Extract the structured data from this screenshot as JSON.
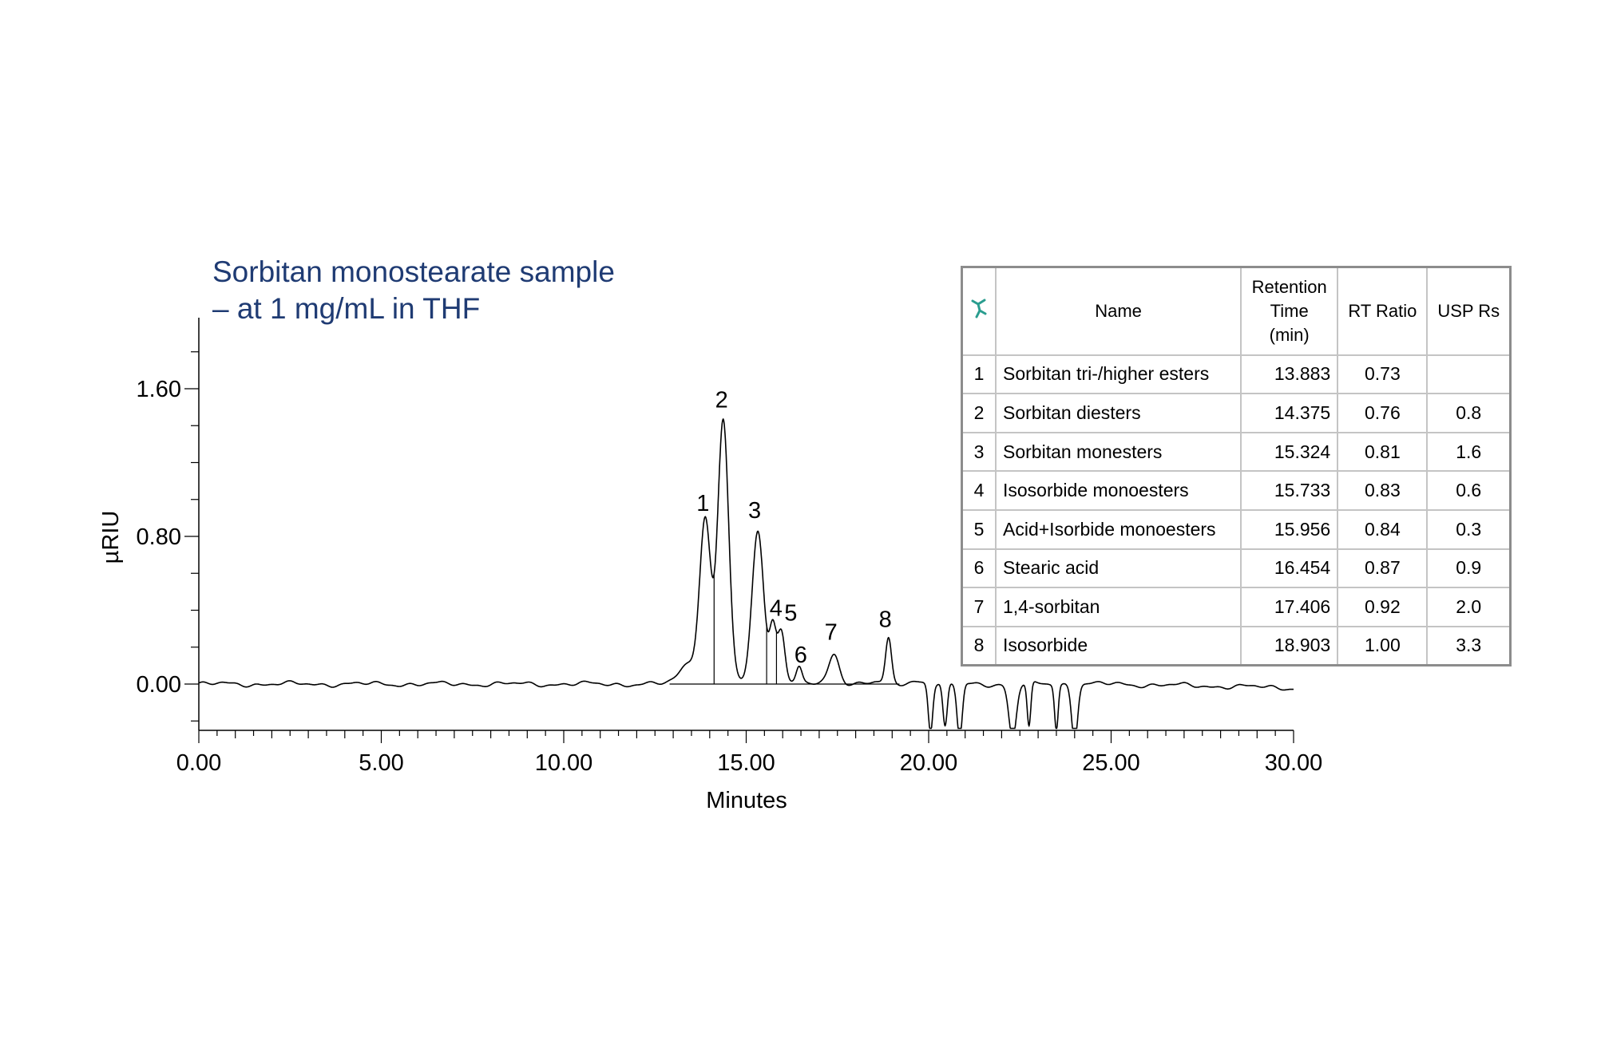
{
  "title_lines": [
    "Sorbitan monostearate sample",
    "– at 1 mg/mL in THF"
  ],
  "table": {
    "headers": {
      "name": "Name",
      "retention_lines": [
        "Retention",
        "Time",
        "(min)"
      ],
      "rt_ratio": "RT Ratio",
      "usp_rs": "USP Rs"
    },
    "rows": [
      {
        "idx": "1",
        "name": "Sorbitan tri-/higher esters",
        "rt": "13.883",
        "ratio": "0.73",
        "rs": ""
      },
      {
        "idx": "2",
        "name": "Sorbitan diesters",
        "rt": "14.375",
        "ratio": "0.76",
        "rs": "0.8"
      },
      {
        "idx": "3",
        "name": "Sorbitan monesters",
        "rt": "15.324",
        "ratio": "0.81",
        "rs": "1.6"
      },
      {
        "idx": "4",
        "name": "Isosorbide monoesters",
        "rt": "15.733",
        "ratio": "0.83",
        "rs": "0.6"
      },
      {
        "idx": "5",
        "name": "Acid+Isorbide monoesters",
        "rt": "15.956",
        "ratio": "0.84",
        "rs": "0.3"
      },
      {
        "idx": "6",
        "name": "Stearic acid",
        "rt": "16.454",
        "ratio": "0.87",
        "rs": "0.9"
      },
      {
        "idx": "7",
        "name": "1,4-sorbitan",
        "rt": "17.406",
        "ratio": "0.92",
        "rs": "2.0"
      },
      {
        "idx": "8",
        "name": "Isosorbide",
        "rt": "18.903",
        "ratio": "1.00",
        "rs": "3.3"
      }
    ]
  },
  "chart_data": {
    "type": "line",
    "title": "Sorbitan monostearate sample – at 1 mg/mL in THF",
    "xlabel": "Minutes",
    "ylabel": "µRIU",
    "xlim": [
      0,
      30
    ],
    "ylim": [
      -0.25,
      2.0
    ],
    "x_ticks": [
      "0.00",
      "5.00",
      "10.00",
      "15.00",
      "20.00",
      "25.00",
      "30.00"
    ],
    "y_ticks": [
      "0.00",
      "0.80",
      "1.60"
    ],
    "grid": false,
    "peaks": [
      {
        "label": "1",
        "x": 13.88,
        "height": 0.87,
        "width": 0.15
      },
      {
        "label": "2",
        "x": 14.37,
        "height": 1.43,
        "width": 0.15
      },
      {
        "label": "3",
        "x": 15.32,
        "height": 0.83,
        "width": 0.16
      },
      {
        "label": "4",
        "x": 15.73,
        "height": 0.3,
        "width": 0.09
      },
      {
        "label": "5",
        "x": 15.96,
        "height": 0.3,
        "width": 0.1
      },
      {
        "label": "6",
        "x": 16.45,
        "height": 0.09,
        "width": 0.08
      },
      {
        "label": "7",
        "x": 17.41,
        "height": 0.17,
        "width": 0.14
      },
      {
        "label": "8",
        "x": 18.9,
        "height": 0.24,
        "width": 0.08
      }
    ],
    "shoulders": [
      {
        "x": 13.45,
        "height": 0.12,
        "width": 0.25
      },
      {
        "x": 18.3,
        "height": 0.01,
        "width": 0.2
      },
      {
        "x": 19.75,
        "height": 0.02,
        "width": 0.2
      }
    ],
    "drop_lines_at": [
      14.12,
      15.56,
      15.83
    ]
  }
}
